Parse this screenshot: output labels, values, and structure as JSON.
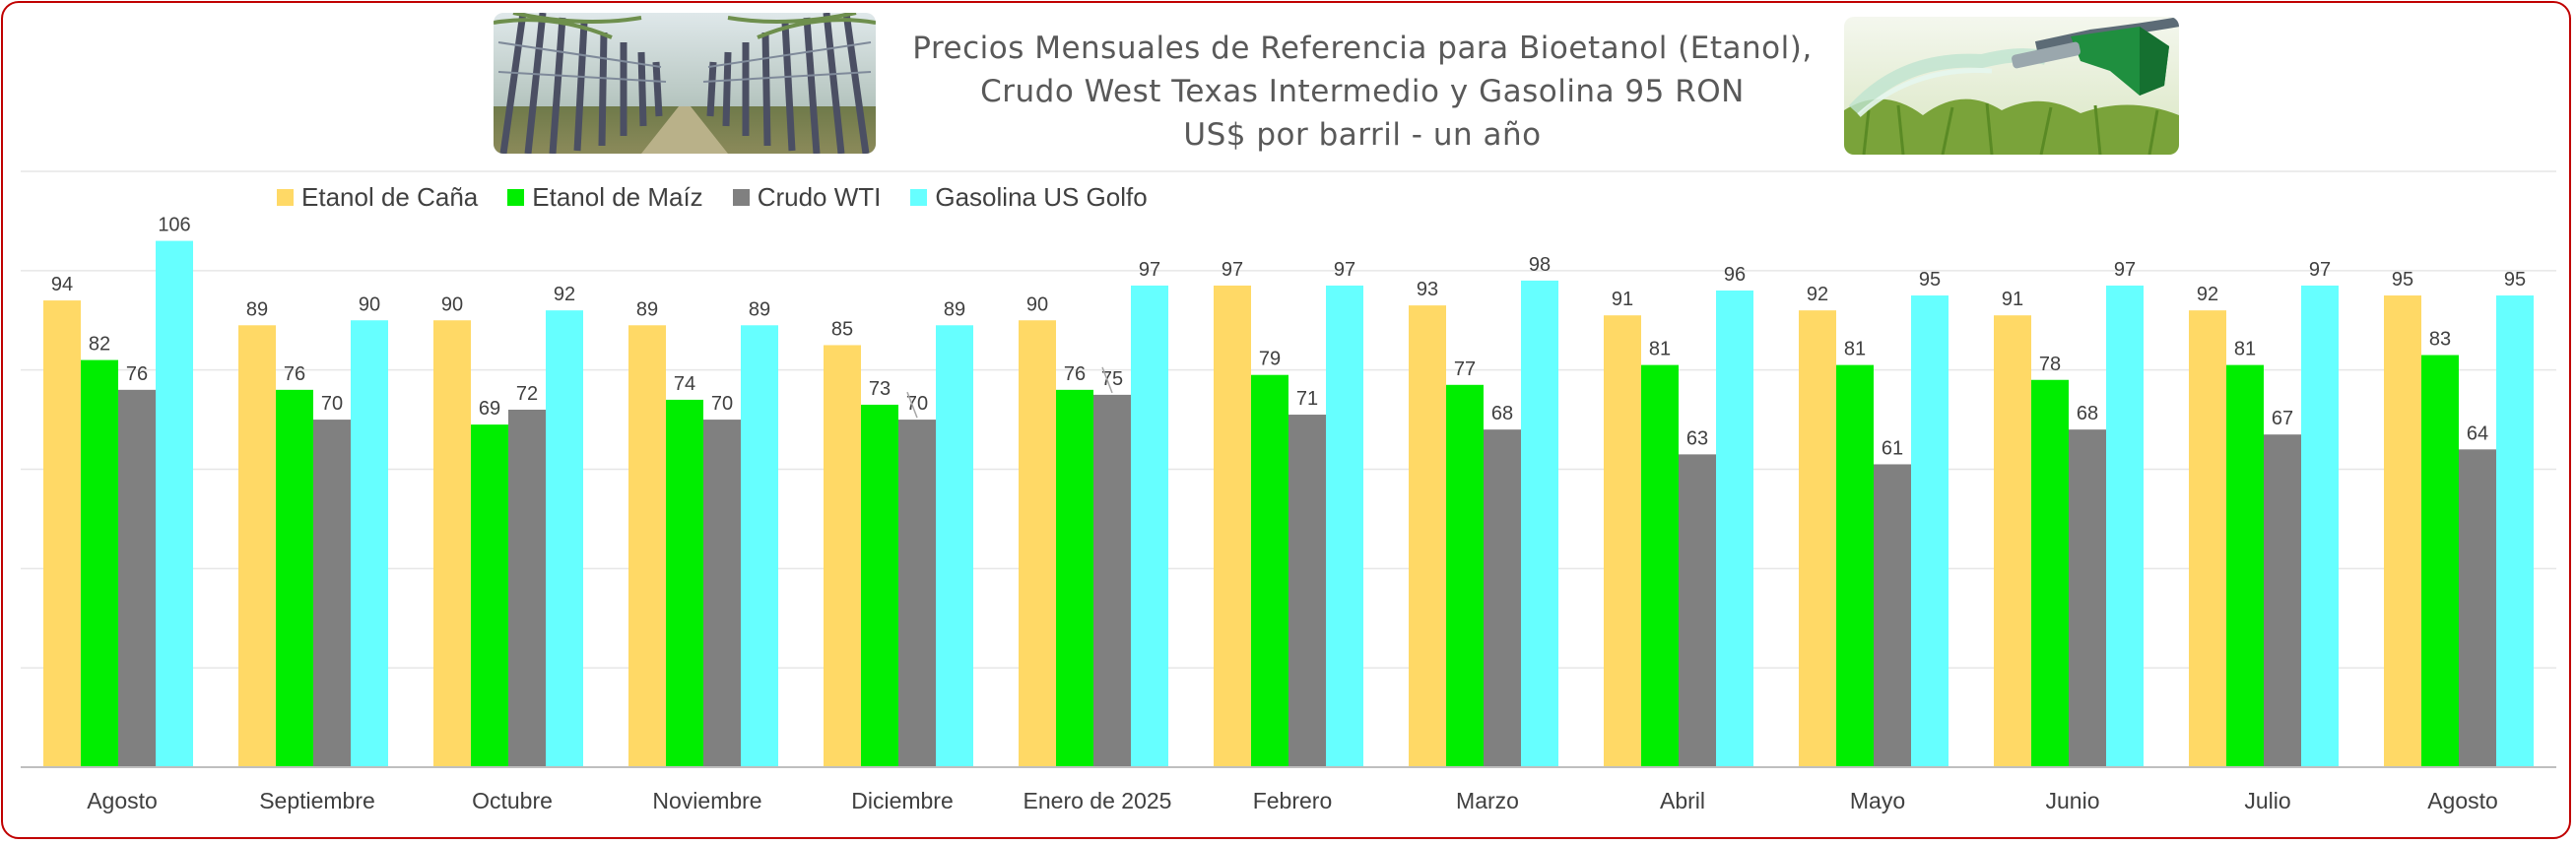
{
  "title_lines": [
    "Precios Mensuales de Referencia para Bioetanol (Etanol),",
    "Crudo West Texas Intermedio y Gasolina 95 RON",
    "US$ por barril - un año"
  ],
  "images": {
    "left": "sugarcane-field-photo",
    "right": "fuel-nozzle-photo"
  },
  "colors": {
    "frame": "#c00000",
    "cana": "#FFD966",
    "maiz": "#00EE00",
    "wti": "#808080",
    "gasolina": "#66FFFF"
  },
  "chart_data": {
    "type": "bar",
    "title": "Precios Mensuales de Referencia para Bioetanol (Etanol), Crudo West Texas Intermedio y Gasolina 95 RON US$ por barril - un año",
    "xlabel": "",
    "ylabel": "",
    "ylim": [
      0,
      120
    ],
    "grid": true,
    "legend_position": "top-left",
    "categories": [
      "Agosto",
      "Septiembre",
      "Octubre",
      "Noviembre",
      "Diciembre",
      "Enero de 2025",
      "Febrero",
      "Marzo",
      "Abril",
      "Mayo",
      "Junio",
      "Julio",
      "Agosto"
    ],
    "series": [
      {
        "name": "Etanol de Caña",
        "color": "#FFD966",
        "values": [
          94,
          89,
          90,
          89,
          85,
          90,
          97,
          93,
          91,
          92,
          91,
          92,
          95
        ]
      },
      {
        "name": "Etanol de Maíz",
        "color": "#00EE00",
        "values": [
          82,
          76,
          69,
          74,
          73,
          76,
          79,
          77,
          81,
          81,
          78,
          81,
          83
        ]
      },
      {
        "name": "Crudo WTI",
        "color": "#808080",
        "values": [
          76,
          70,
          72,
          70,
          70,
          75,
          71,
          68,
          63,
          61,
          68,
          67,
          64
        ]
      },
      {
        "name": "Gasolina US Golfo",
        "color": "#66FFFF",
        "values": [
          106,
          90,
          92,
          89,
          89,
          97,
          97,
          98,
          96,
          95,
          97,
          97,
          95
        ]
      }
    ]
  }
}
